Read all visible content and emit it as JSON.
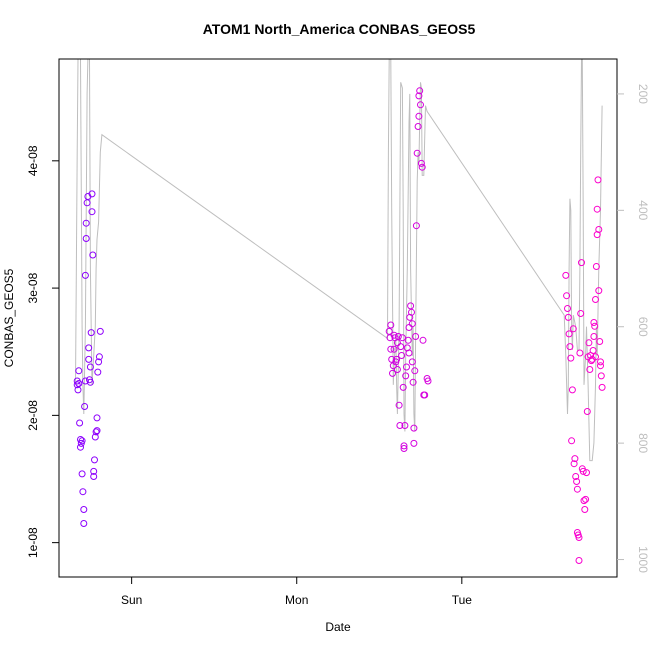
{
  "chart_data": {
    "type": "scatter",
    "title": "ATOM1 North_America CONBAS_GEOS5",
    "xlabel": "Date",
    "ylabel": "CONBAS_GEOS5",
    "x_unit": "days",
    "x_ticks": [
      {
        "value": 1.0,
        "label": "Sun"
      },
      {
        "value": 2.0,
        "label": "Mon"
      },
      {
        "value": 3.0,
        "label": "Tue"
      }
    ],
    "xlim": [
      0.56,
      3.94
    ],
    "y_ticks": [
      {
        "value": 1e-08,
        "label": "1e-08"
      },
      {
        "value": 2e-08,
        "label": "2e-08"
      },
      {
        "value": 3e-08,
        "label": "3e-08"
      },
      {
        "value": 4e-08,
        "label": "4e-08"
      }
    ],
    "ylim": [
      7.3e-09,
      4.8e-08
    ],
    "y2_ticks": [
      {
        "value": 200,
        "label": "200"
      },
      {
        "value": 400,
        "label": "400"
      },
      {
        "value": 600,
        "label": "600"
      },
      {
        "value": 800,
        "label": "800"
      },
      {
        "value": 1000,
        "label": "1000"
      }
    ],
    "y2lim": [
      1030,
      140
    ],
    "colors": {
      "points_start": "#8800ff",
      "points_end": "#ff00cc",
      "pressure_line": "#bebebe",
      "axis": "#000000"
    },
    "series": [
      {
        "kind": "points",
        "points": [
          [
            0.67,
            2.27e-08
          ],
          [
            0.67,
            2.24e-08
          ],
          [
            0.675,
            2.2e-08
          ],
          [
            0.68,
            2.35e-08
          ],
          [
            0.68,
            2.25e-08
          ],
          [
            0.685,
            1.94e-08
          ],
          [
            0.69,
            1.81e-08
          ],
          [
            0.69,
            1.75e-08
          ],
          [
            0.695,
            1.78e-08
          ],
          [
            0.7,
            1.8e-08
          ],
          [
            0.7,
            1.54e-08
          ],
          [
            0.705,
            1.4e-08
          ],
          [
            0.71,
            1.26e-08
          ],
          [
            0.71,
            1.15e-08
          ],
          [
            0.715,
            2.07e-08
          ],
          [
            0.72,
            2.27e-08
          ],
          [
            0.72,
            3.1e-08
          ],
          [
            0.725,
            3.39e-08
          ],
          [
            0.725,
            3.51e-08
          ],
          [
            0.73,
            3.67e-08
          ],
          [
            0.735,
            3.72e-08
          ],
          [
            0.74,
            2.53e-08
          ],
          [
            0.74,
            2.44e-08
          ],
          [
            0.745,
            2.28e-08
          ],
          [
            0.75,
            2.26e-08
          ],
          [
            0.75,
            2.38e-08
          ],
          [
            0.755,
            2.65e-08
          ],
          [
            0.76,
            3.74e-08
          ],
          [
            0.76,
            3.6e-08
          ],
          [
            0.765,
            3.26e-08
          ],
          [
            0.77,
            1.56e-08
          ],
          [
            0.77,
            1.52e-08
          ],
          [
            0.775,
            1.65e-08
          ],
          [
            0.78,
            1.83e-08
          ],
          [
            0.785,
            1.87e-08
          ],
          [
            0.79,
            1.88e-08
          ],
          [
            0.79,
            1.98e-08
          ],
          [
            0.795,
            2.34e-08
          ],
          [
            0.8,
            2.42e-08
          ],
          [
            0.805,
            2.46e-08
          ],
          [
            0.81,
            2.66e-08
          ],
          [
            2.56,
            2.66e-08
          ],
          [
            2.565,
            2.61e-08
          ],
          [
            2.57,
            2.52e-08
          ],
          [
            2.57,
            2.71e-08
          ],
          [
            2.575,
            2.44e-08
          ],
          [
            2.58,
            2.33e-08
          ],
          [
            2.585,
            2.39e-08
          ],
          [
            2.59,
            2.52e-08
          ],
          [
            2.59,
            2.63e-08
          ],
          [
            2.595,
            2.61e-08
          ],
          [
            2.6,
            2.42e-08
          ],
          [
            2.605,
            2.44e-08
          ],
          [
            2.61,
            2.57e-08
          ],
          [
            2.61,
            2.36e-08
          ],
          [
            2.615,
            2.62e-08
          ],
          [
            2.62,
            2.08e-08
          ],
          [
            2.625,
            1.92e-08
          ],
          [
            2.63,
            2.54e-08
          ],
          [
            2.635,
            2.47e-08
          ],
          [
            2.64,
            2.61e-08
          ],
          [
            2.645,
            2.22e-08
          ],
          [
            2.65,
            1.76e-08
          ],
          [
            2.65,
            1.74e-08
          ],
          [
            2.655,
            1.92e-08
          ],
          [
            2.66,
            2.31e-08
          ],
          [
            2.665,
            2.38e-08
          ],
          [
            2.67,
            2.53e-08
          ],
          [
            2.675,
            2.59e-08
          ],
          [
            2.68,
            2.69e-08
          ],
          [
            2.68,
            2.49e-08
          ],
          [
            2.685,
            2.77e-08
          ],
          [
            2.69,
            2.86e-08
          ],
          [
            2.695,
            2.81e-08
          ],
          [
            2.7,
            2.72e-08
          ],
          [
            2.7,
            2.42e-08
          ],
          [
            2.705,
            2.26e-08
          ],
          [
            2.71,
            1.9e-08
          ],
          [
            2.71,
            1.78e-08
          ],
          [
            2.715,
            2.35e-08
          ],
          [
            2.72,
            2.62e-08
          ],
          [
            2.725,
            3.49e-08
          ],
          [
            2.73,
            4.06e-08
          ],
          [
            2.735,
            4.27e-08
          ],
          [
            2.74,
            4.35e-08
          ],
          [
            2.74,
            4.51e-08
          ],
          [
            2.745,
            4.55e-08
          ],
          [
            2.75,
            4.44e-08
          ],
          [
            2.755,
            3.98e-08
          ],
          [
            2.76,
            3.95e-08
          ],
          [
            2.765,
            2.59e-08
          ],
          [
            2.77,
            2.16e-08
          ],
          [
            2.775,
            2.16e-08
          ],
          [
            2.79,
            2.29e-08
          ],
          [
            2.795,
            2.27e-08
          ],
          [
            3.63,
            3.1e-08
          ],
          [
            3.635,
            2.94e-08
          ],
          [
            3.64,
            2.84e-08
          ],
          [
            3.645,
            2.77e-08
          ],
          [
            3.65,
            2.64e-08
          ],
          [
            3.655,
            2.54e-08
          ],
          [
            3.66,
            2.45e-08
          ],
          [
            3.665,
            1.8e-08
          ],
          [
            3.67,
            2.2e-08
          ],
          [
            3.675,
            2.68e-08
          ],
          [
            3.68,
            1.62e-08
          ],
          [
            3.685,
            1.66e-08
          ],
          [
            3.69,
            1.52e-08
          ],
          [
            3.695,
            1.48e-08
          ],
          [
            3.7,
            1.42e-08
          ],
          [
            3.7,
            1.08e-08
          ],
          [
            3.705,
            1.06e-08
          ],
          [
            3.71,
            1.04e-08
          ],
          [
            3.71,
            8.6e-09
          ],
          [
            3.715,
            2.49e-08
          ],
          [
            3.72,
            2.8e-08
          ],
          [
            3.725,
            3.2e-08
          ],
          [
            3.73,
            1.58e-08
          ],
          [
            3.735,
            1.56e-08
          ],
          [
            3.74,
            1.33e-08
          ],
          [
            3.745,
            1.26e-08
          ],
          [
            3.75,
            1.34e-08
          ],
          [
            3.755,
            1.55e-08
          ],
          [
            3.76,
            2.03e-08
          ],
          [
            3.765,
            2.46e-08
          ],
          [
            3.77,
            2.57e-08
          ],
          [
            3.775,
            2.36e-08
          ],
          [
            3.78,
            2.47e-08
          ],
          [
            3.785,
            2.43e-08
          ],
          [
            3.79,
            2.44e-08
          ],
          [
            3.795,
            2.51e-08
          ],
          [
            3.8,
            2.73e-08
          ],
          [
            3.8,
            2.62e-08
          ],
          [
            3.805,
            2.7e-08
          ],
          [
            3.81,
            2.46e-08
          ],
          [
            3.81,
            2.91e-08
          ],
          [
            3.815,
            3.17e-08
          ],
          [
            3.82,
            3.42e-08
          ],
          [
            3.82,
            3.62e-08
          ],
          [
            3.825,
            3.85e-08
          ],
          [
            3.83,
            3.46e-08
          ],
          [
            3.83,
            2.98e-08
          ],
          [
            3.835,
            2.58e-08
          ],
          [
            3.84,
            2.42e-08
          ],
          [
            3.84,
            2.39e-08
          ],
          [
            3.845,
            2.31e-08
          ],
          [
            3.85,
            2.22e-08
          ]
        ]
      },
      {
        "kind": "line",
        "axis": "right",
        "points": [
          [
            0.66,
            700
          ],
          [
            0.67,
            300
          ],
          [
            0.675,
            140
          ],
          [
            0.69,
            140
          ],
          [
            0.7,
            600
          ],
          [
            0.705,
            700
          ],
          [
            0.71,
            750
          ],
          [
            0.72,
            600
          ],
          [
            0.73,
            200
          ],
          [
            0.735,
            140
          ],
          [
            0.745,
            140
          ],
          [
            0.75,
            500
          ],
          [
            0.76,
            700
          ],
          [
            0.77,
            650
          ],
          [
            0.78,
            600
          ],
          [
            0.785,
            500
          ],
          [
            0.79,
            450
          ],
          [
            0.8,
            420
          ],
          [
            0.81,
            300
          ],
          [
            0.82,
            270
          ],
          [
            2.55,
            620
          ],
          [
            2.555,
            300
          ],
          [
            2.56,
            140
          ],
          [
            2.57,
            140
          ],
          [
            2.575,
            400
          ],
          [
            2.585,
            700
          ],
          [
            2.59,
            660
          ],
          [
            2.6,
            620
          ],
          [
            2.605,
            700
          ],
          [
            2.61,
            750
          ],
          [
            2.62,
            600
          ],
          [
            2.63,
            180
          ],
          [
            2.64,
            190
          ],
          [
            2.645,
            400
          ],
          [
            2.65,
            750
          ],
          [
            2.655,
            780
          ],
          [
            2.66,
            650
          ],
          [
            2.67,
            500
          ],
          [
            2.68,
            250
          ],
          [
            2.685,
            200
          ],
          [
            2.69,
            500
          ],
          [
            2.7,
            650
          ],
          [
            2.705,
            600
          ],
          [
            2.71,
            750
          ],
          [
            2.715,
            780
          ],
          [
            2.72,
            620
          ],
          [
            2.73,
            350
          ],
          [
            2.735,
            300
          ],
          [
            2.74,
            320
          ],
          [
            2.75,
            180
          ],
          [
            2.755,
            190
          ],
          [
            2.76,
            340
          ],
          [
            2.77,
            340
          ],
          [
            2.78,
            220
          ],
          [
            2.79,
            230
          ],
          [
            3.62,
            580
          ],
          [
            3.63,
            650
          ],
          [
            3.64,
            750
          ],
          [
            3.645,
            700
          ],
          [
            3.65,
            500
          ],
          [
            3.655,
            380
          ],
          [
            3.66,
            400
          ],
          [
            3.665,
            600
          ],
          [
            3.67,
            640
          ],
          [
            3.675,
            580
          ],
          [
            3.69,
            600
          ],
          [
            3.7,
            640
          ],
          [
            3.71,
            640
          ],
          [
            3.715,
            500
          ],
          [
            3.72,
            300
          ],
          [
            3.725,
            140
          ],
          [
            3.73,
            140
          ],
          [
            3.735,
            400
          ],
          [
            3.74,
            700
          ],
          [
            3.75,
            650
          ],
          [
            3.755,
            600
          ],
          [
            3.765,
            700
          ],
          [
            3.775,
            830
          ],
          [
            3.79,
            830
          ],
          [
            3.8,
            800
          ],
          [
            3.81,
            700
          ],
          [
            3.815,
            600
          ],
          [
            3.82,
            650
          ],
          [
            3.83,
            500
          ],
          [
            3.84,
            400
          ],
          [
            3.85,
            220
          ]
        ]
      }
    ]
  }
}
